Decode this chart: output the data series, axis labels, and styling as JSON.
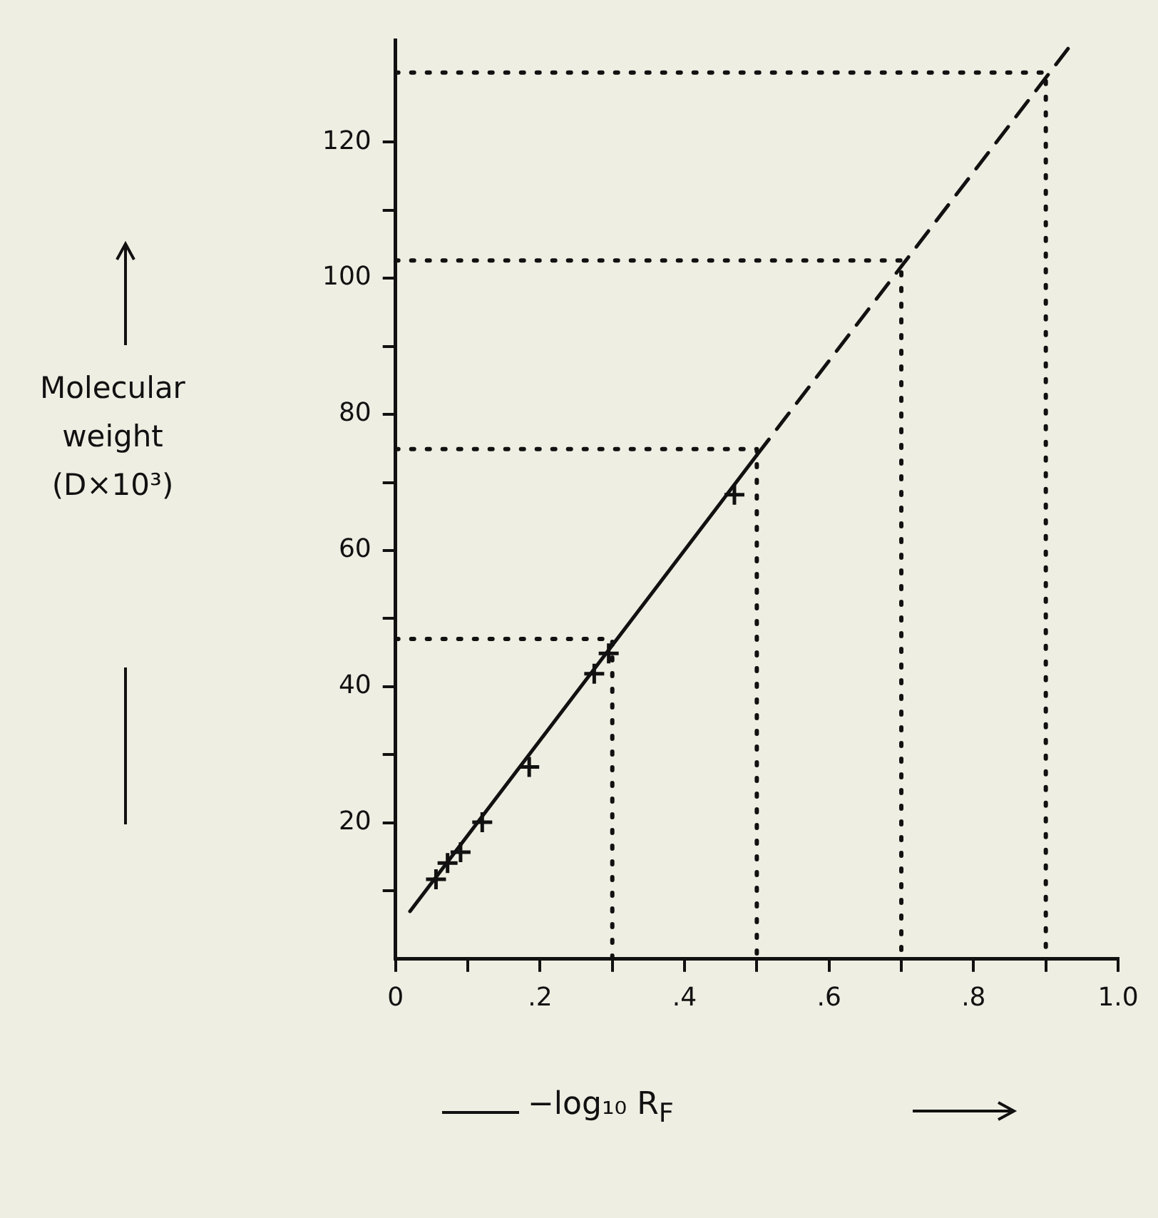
{
  "chart_data": {
    "type": "scatter",
    "xlabel": "−log₁₀ R$_{F}$",
    "ylabel": "Molecular weight (D×10³)",
    "xlim": [
      0,
      1.0
    ],
    "ylim": [
      0,
      135
    ],
    "xticks": [
      {
        "value": 0,
        "label": "0"
      },
      {
        "value": 0.1,
        "label": null
      },
      {
        "value": 0.2,
        "label": ".2"
      },
      {
        "value": 0.3,
        "label": null
      },
      {
        "value": 0.4,
        "label": ".4"
      },
      {
        "value": 0.5,
        "label": null
      },
      {
        "value": 0.6,
        "label": ".6"
      },
      {
        "value": 0.7,
        "label": null
      },
      {
        "value": 0.8,
        "label": ".8"
      },
      {
        "value": 0.9,
        "label": null
      },
      {
        "value": 1.0,
        "label": "1.0"
      }
    ],
    "yticks": [
      {
        "value": 10,
        "label": null
      },
      20,
      {
        "value": 30,
        "label": null
      },
      40,
      {
        "value": 50,
        "label": null
      },
      60,
      {
        "value": 70,
        "label": null
      },
      80,
      {
        "value": 90,
        "label": null
      },
      100,
      {
        "value": 110,
        "label": null
      },
      120
    ],
    "grid": false,
    "legend": false,
    "series": [
      {
        "color": "#111111",
        "marker": "cross",
        "x": [
          0.056,
          0.072,
          0.09,
          0.12,
          0.185,
          0.275,
          0.295,
          0.469
        ],
        "values": [
          11.7,
          14.1,
          15.7,
          20.1,
          28.2,
          41.9,
          44.9,
          68.2
        ]
      },
      {
        "type": "line",
        "color": "#111111",
        "marker": "none",
        "line_style": "solid",
        "x": [
          0.02,
          0.5
        ],
        "values": [
          7,
          74
        ]
      },
      {
        "type": "line",
        "color": "#111111",
        "marker": "none",
        "line_style": "dashed",
        "x": [
          0.5,
          0.94
        ],
        "values": [
          74,
          135
        ]
      },
      {
        "type": "line",
        "color": "#111111",
        "marker": "none",
        "line_style": "dotted",
        "x": [
          0,
          0.3,
          0.3
        ],
        "values": [
          47,
          47,
          0
        ]
      },
      {
        "type": "line",
        "color": "#111111",
        "marker": "none",
        "line_style": "dotted",
        "x": [
          0,
          0.5,
          0.5
        ],
        "values": [
          74.9,
          74.9,
          0
        ]
      },
      {
        "type": "line",
        "color": "#111111",
        "marker": "none",
        "line_style": "dotted",
        "x": [
          0,
          0.7,
          0.7
        ],
        "values": [
          102.6,
          102.6,
          0
        ]
      },
      {
        "type": "line",
        "color": "#111111",
        "marker": "none",
        "line_style": "dotted",
        "x": [
          0,
          0.9,
          0.9
        ],
        "values": [
          130.2,
          130.2,
          0
        ]
      }
    ]
  }
}
